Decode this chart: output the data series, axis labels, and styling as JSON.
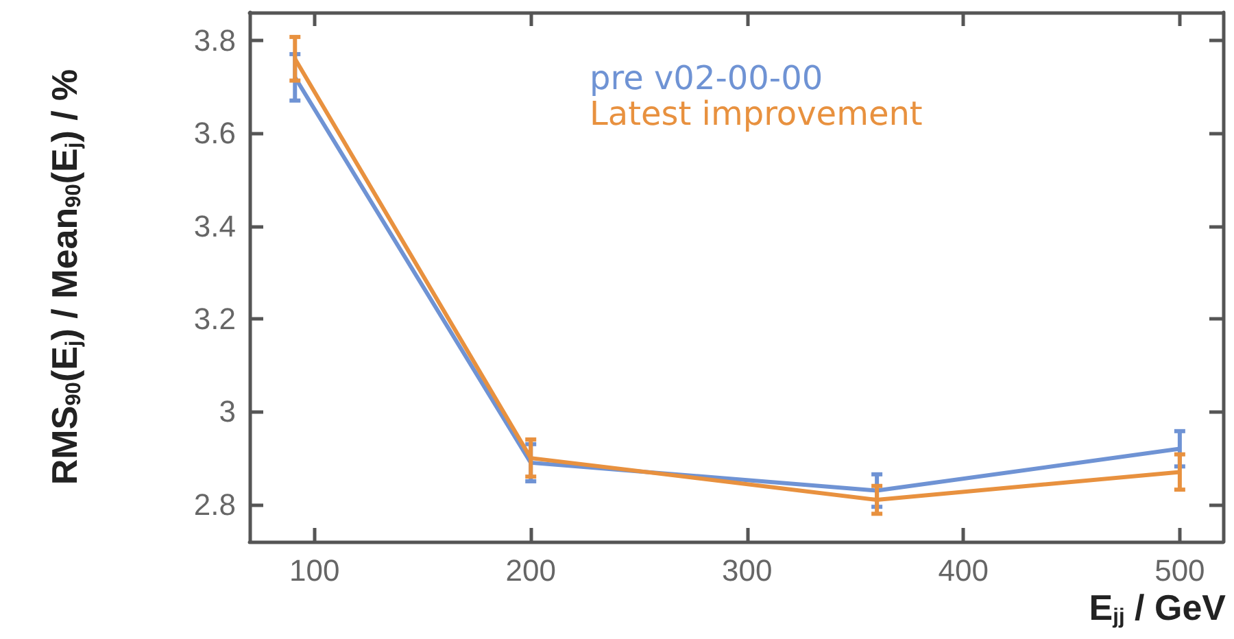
{
  "chart_data": {
    "type": "line",
    "xlabel": "E$_{jj}$ / GeV",
    "ylabel": "RMS$_{90}$(E$_{j}$) / Mean$_{90}$(E$_{j}$) / %",
    "x": [
      91,
      200,
      360,
      500
    ],
    "series": [
      {
        "name": "pre v02-00-00",
        "color": "#6f93d4",
        "values": [
          3.72,
          2.89,
          2.83,
          2.92
        ],
        "errors": [
          0.05,
          0.04,
          0.035,
          0.038
        ]
      },
      {
        "name": "Latest improvement",
        "color": "#e8913f",
        "values": [
          3.76,
          2.9,
          2.81,
          2.87
        ],
        "errors": [
          0.047,
          0.04,
          0.03,
          0.038
        ]
      }
    ],
    "xlim": [
      70,
      520
    ],
    "xticks": [
      100,
      200,
      300,
      400,
      500
    ],
    "ylim": [
      2.72,
      3.86
    ],
    "yticks": [
      2.8,
      3,
      3.2,
      3.4,
      3.6,
      3.8
    ],
    "grid": false,
    "legend": "top right",
    "marker": "none",
    "line_style": "solid"
  }
}
